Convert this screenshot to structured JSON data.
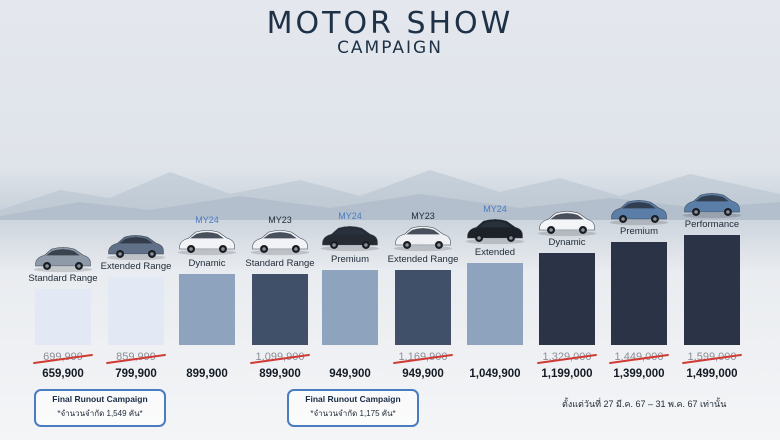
{
  "title": "MOTOR SHOW",
  "subtitle": "CAMPAIGN",
  "models": [
    {
      "year": "",
      "trim": "Standard Range",
      "old_price": "699,999",
      "new_price": "659,900",
      "bar_level": 0.56,
      "color": "#e2e8f4"
    },
    {
      "year": "",
      "trim": "Extended Range",
      "old_price": "859,999",
      "new_price": "799,900",
      "bar_level": 0.68,
      "color": "#e2e8f4"
    },
    {
      "year": "MY24",
      "trim": "Dynamic",
      "old_price": "",
      "new_price": "899,900",
      "bar_level": 0.71,
      "color": "#8ea3bd"
    },
    {
      "year": "MY23",
      "trim": "Standard Range",
      "old_price": "1,099,900",
      "new_price": "899,900",
      "bar_level": 0.71,
      "color": "#3f5068"
    },
    {
      "year": "MY24",
      "trim": "Premium",
      "old_price": "",
      "new_price": "949,900",
      "bar_level": 0.75,
      "color": "#8ea3bd"
    },
    {
      "year": "MY23",
      "trim": "Extended Range",
      "old_price": "1,169,900",
      "new_price": "949,900",
      "bar_level": 0.75,
      "color": "#3f5068"
    },
    {
      "year": "MY24",
      "trim": "Extended",
      "old_price": "",
      "new_price": "1,049,900",
      "bar_level": 0.82,
      "color": "#8ea3bd"
    },
    {
      "year": "",
      "trim": "Dynamic",
      "old_price": "1,329,000",
      "new_price": "1,199,000",
      "bar_level": 0.92,
      "color": "#2a3446"
    },
    {
      "year": "",
      "trim": "Premium",
      "old_price": "1,449,000",
      "new_price": "1,399,000",
      "bar_level": 1.03,
      "color": "#2a3446"
    },
    {
      "year": "",
      "trim": "Performance",
      "old_price": "1,599,000",
      "new_price": "1,499,000",
      "bar_level": 1.1,
      "color": "#2a3446"
    }
  ],
  "campaigns": [
    {
      "heading": "Final Runout Campaign",
      "sub": "*จำนวนจำกัด 1,549 คัน*"
    },
    {
      "heading": "Final Runout Campaign",
      "sub": "*จำนวนจำกัด 1,175 คัน*"
    }
  ],
  "footnote": "ตั้งแต่วันที่ 27 มี.ค. 67 – 31 พ.ค. 67 เท่านั้น",
  "colors": {
    "title": "#1f3146",
    "accent": "#4a7cc0",
    "strike": "#d23a34"
  }
}
